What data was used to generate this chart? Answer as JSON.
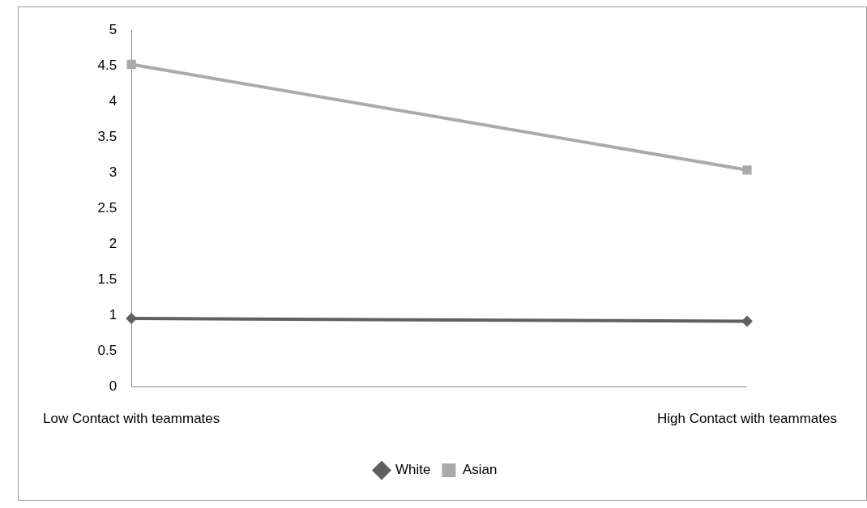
{
  "chart_data": {
    "type": "line",
    "categories": [
      "Low Contact with teammates",
      "High Contact with teammates"
    ],
    "series": [
      {
        "name": "White",
        "color": "#606060",
        "values": [
          0.96,
          0.92
        ],
        "marker": "diamond"
      },
      {
        "name": "Asian",
        "color": "#aaaaaa",
        "values": [
          4.52,
          3.04
        ],
        "marker": "square"
      }
    ],
    "ylim": [
      0,
      5
    ],
    "yticks": [
      0,
      0.5,
      1,
      1.5,
      2,
      2.5,
      3,
      3.5,
      4,
      4.5,
      5
    ],
    "grid": false,
    "legend": "bottom"
  }
}
